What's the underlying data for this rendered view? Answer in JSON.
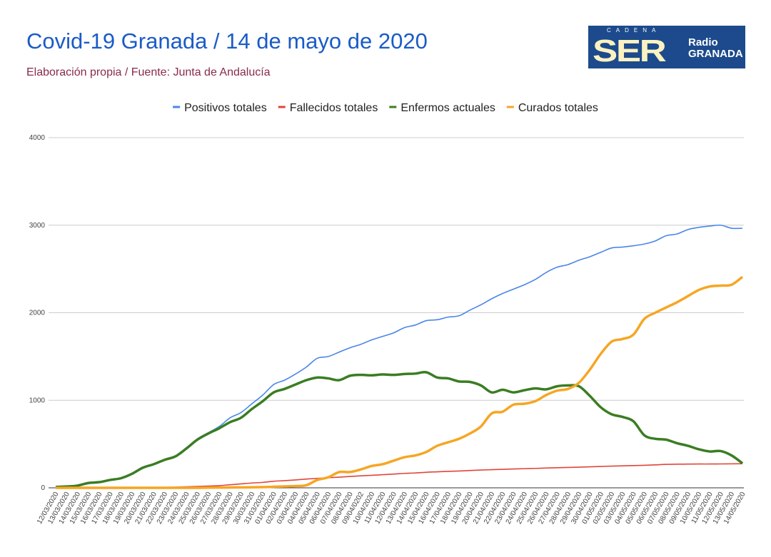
{
  "title": "Covid-19 Granada / 14 de mayo de 2020",
  "subtitle": "Elaboración propia / Fuente: Junta de Andalucía",
  "logo": {
    "cadena": "CADENA",
    "ser": "SER",
    "radio": "Radio",
    "granada": "GRANADA"
  },
  "chart_data": {
    "type": "line",
    "title": "Covid-19 Granada / 14 de mayo de 2020",
    "legend_position": "top",
    "grid": true,
    "ylim": [
      0,
      4000
    ],
    "yticks": [
      "0",
      "1000",
      "2000",
      "3000",
      "4000"
    ],
    "categories": [
      "12/03/2020",
      "13/03/2020",
      "14/03/2020",
      "15/03/2020",
      "16/03/2020",
      "17/03/2020",
      "18/03/2020",
      "19/03/2020",
      "20/03/2020",
      "21/03/2020",
      "22/03/2020",
      "23/03/2020",
      "24/03/2020",
      "25/03/2020",
      "26/03/2020",
      "27/03/2020",
      "28/03/2020",
      "29/03/2020",
      "30/03/2020",
      "31/03/2020",
      "01/04/2020",
      "02/04/2020",
      "03/04/2020",
      "04/04/2020",
      "05/04/2020",
      "06/04/2020",
      "07/04/2020",
      "08/04/2020",
      "09/04/0202",
      "10/04/2020",
      "11/04/2020",
      "12/04/2020",
      "13/04/2020",
      "14/04/2020",
      "15/04/2020",
      "16/04/2020",
      "17/04/2020",
      "18/04/2020",
      "19/04/2020",
      "20/04/2020",
      "21/04/2020",
      "22/04/2020",
      "23/04/2020",
      "24/04/2020",
      "25/04/2020",
      "26/04/2020",
      "27/04/2020",
      "28/04/2020",
      "29/04/2020",
      "30/04/2020",
      "01/05/2020",
      "02/05/2020",
      "03/05/2020",
      "04/05/2020",
      "05/05/2020",
      "06/05/2020",
      "07/05/2020",
      "08/05/2020",
      "09/05/2020",
      "10/05/2020",
      "11/05/2020",
      "12/05/2020",
      "13/05/2020",
      "14/05/2020"
    ],
    "series": [
      {
        "name": "Positivos totales",
        "color": "#4a86e8",
        "width": 1.6,
        "values": [
          10,
          15,
          25,
          55,
          65,
          90,
          110,
          160,
          230,
          270,
          320,
          360,
          460,
          560,
          630,
          700,
          800,
          860,
          960,
          1060,
          1180,
          1230,
          1300,
          1380,
          1480,
          1500,
          1550,
          1600,
          1640,
          1690,
          1730,
          1770,
          1830,
          1860,
          1910,
          1920,
          1950,
          1965,
          2030,
          2090,
          2160,
          2220,
          2270,
          2320,
          2380,
          2460,
          2520,
          2550,
          2600,
          2640,
          2690,
          2740,
          2750,
          2765,
          2785,
          2820,
          2880,
          2900,
          2950,
          2975,
          2990,
          3000,
          2965,
          2965
        ]
      },
      {
        "name": "Fallecidos totales",
        "color": "#e0453a",
        "width": 1.6,
        "values": [
          0,
          0,
          0,
          0,
          0,
          0,
          1,
          2,
          3,
          4,
          6,
          8,
          12,
          16,
          20,
          25,
          35,
          45,
          55,
          62,
          75,
          82,
          90,
          100,
          108,
          115,
          122,
          130,
          137,
          143,
          150,
          157,
          165,
          170,
          178,
          183,
          188,
          192,
          198,
          203,
          207,
          211,
          215,
          219,
          222,
          226,
          230,
          233,
          236,
          240,
          244,
          248,
          251,
          254,
          257,
          262,
          268,
          270,
          271,
          272,
          272,
          273,
          274,
          275
        ]
      },
      {
        "name": "Enfermos actuales",
        "color": "#3a7d22",
        "width": 3.5,
        "values": [
          10,
          15,
          25,
          55,
          65,
          90,
          110,
          160,
          230,
          270,
          320,
          360,
          450,
          550,
          620,
          680,
          750,
          800,
          900,
          990,
          1090,
          1130,
          1180,
          1230,
          1260,
          1250,
          1230,
          1280,
          1290,
          1285,
          1295,
          1290,
          1300,
          1305,
          1320,
          1260,
          1250,
          1215,
          1210,
          1170,
          1090,
          1120,
          1090,
          1115,
          1135,
          1125,
          1160,
          1170,
          1160,
          1050,
          920,
          840,
          810,
          760,
          600,
          560,
          550,
          510,
          480,
          440,
          415,
          420,
          370,
          280
        ]
      },
      {
        "name": "Curados totales",
        "color": "#f6a623",
        "width": 3.5,
        "values": [
          0,
          0,
          0,
          0,
          0,
          0,
          0,
          0,
          0,
          0,
          0,
          0,
          0,
          0,
          2,
          3,
          4,
          5,
          6,
          8,
          12,
          16,
          20,
          30,
          90,
          120,
          180,
          180,
          210,
          250,
          270,
          310,
          350,
          370,
          410,
          480,
          520,
          560,
          620,
          700,
          850,
          870,
          950,
          960,
          990,
          1060,
          1110,
          1130,
          1200,
          1350,
          1530,
          1670,
          1700,
          1750,
          1930,
          2000,
          2060,
          2120,
          2190,
          2260,
          2300,
          2310,
          2320,
          2410
        ]
      }
    ]
  }
}
